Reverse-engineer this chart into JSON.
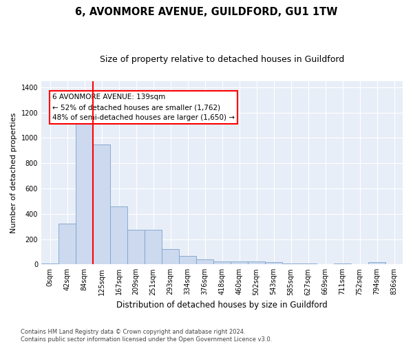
{
  "title": "6, AVONMORE AVENUE, GUILDFORD, GU1 1TW",
  "subtitle": "Size of property relative to detached houses in Guildford",
  "xlabel": "Distribution of detached houses by size in Guildford",
  "ylabel": "Number of detached properties",
  "bar_color": "#ccd9ee",
  "bar_edge_color": "#7ba3cc",
  "categories": [
    "0sqm",
    "42sqm",
    "84sqm",
    "125sqm",
    "167sqm",
    "209sqm",
    "251sqm",
    "293sqm",
    "334sqm",
    "376sqm",
    "418sqm",
    "460sqm",
    "502sqm",
    "543sqm",
    "585sqm",
    "627sqm",
    "669sqm",
    "711sqm",
    "752sqm",
    "794sqm",
    "836sqm"
  ],
  "values": [
    5,
    325,
    1115,
    950,
    460,
    275,
    275,
    120,
    65,
    38,
    22,
    22,
    22,
    18,
    5,
    5,
    0,
    5,
    0,
    18,
    0
  ],
  "ylim": [
    0,
    1450
  ],
  "yticks": [
    0,
    200,
    400,
    600,
    800,
    1000,
    1200,
    1400
  ],
  "red_line_x": 2.5,
  "marker_label": "6 AVONMORE AVENUE: 139sqm",
  "arrow_left_text": "← 52% of detached houses are smaller (1,762)",
  "arrow_right_text": "48% of semi-detached houses are larger (1,650) →",
  "footnote": "Contains HM Land Registry data © Crown copyright and database right 2024.\nContains public sector information licensed under the Open Government Licence v3.0.",
  "fig_bg_color": "#ffffff",
  "plot_bg_color": "#e8eef7",
  "grid_color": "#ffffff",
  "title_fontsize": 10.5,
  "subtitle_fontsize": 9,
  "tick_fontsize": 7,
  "ylabel_fontsize": 8,
  "xlabel_fontsize": 8.5,
  "footnote_fontsize": 6,
  "annot_fontsize": 7.5
}
